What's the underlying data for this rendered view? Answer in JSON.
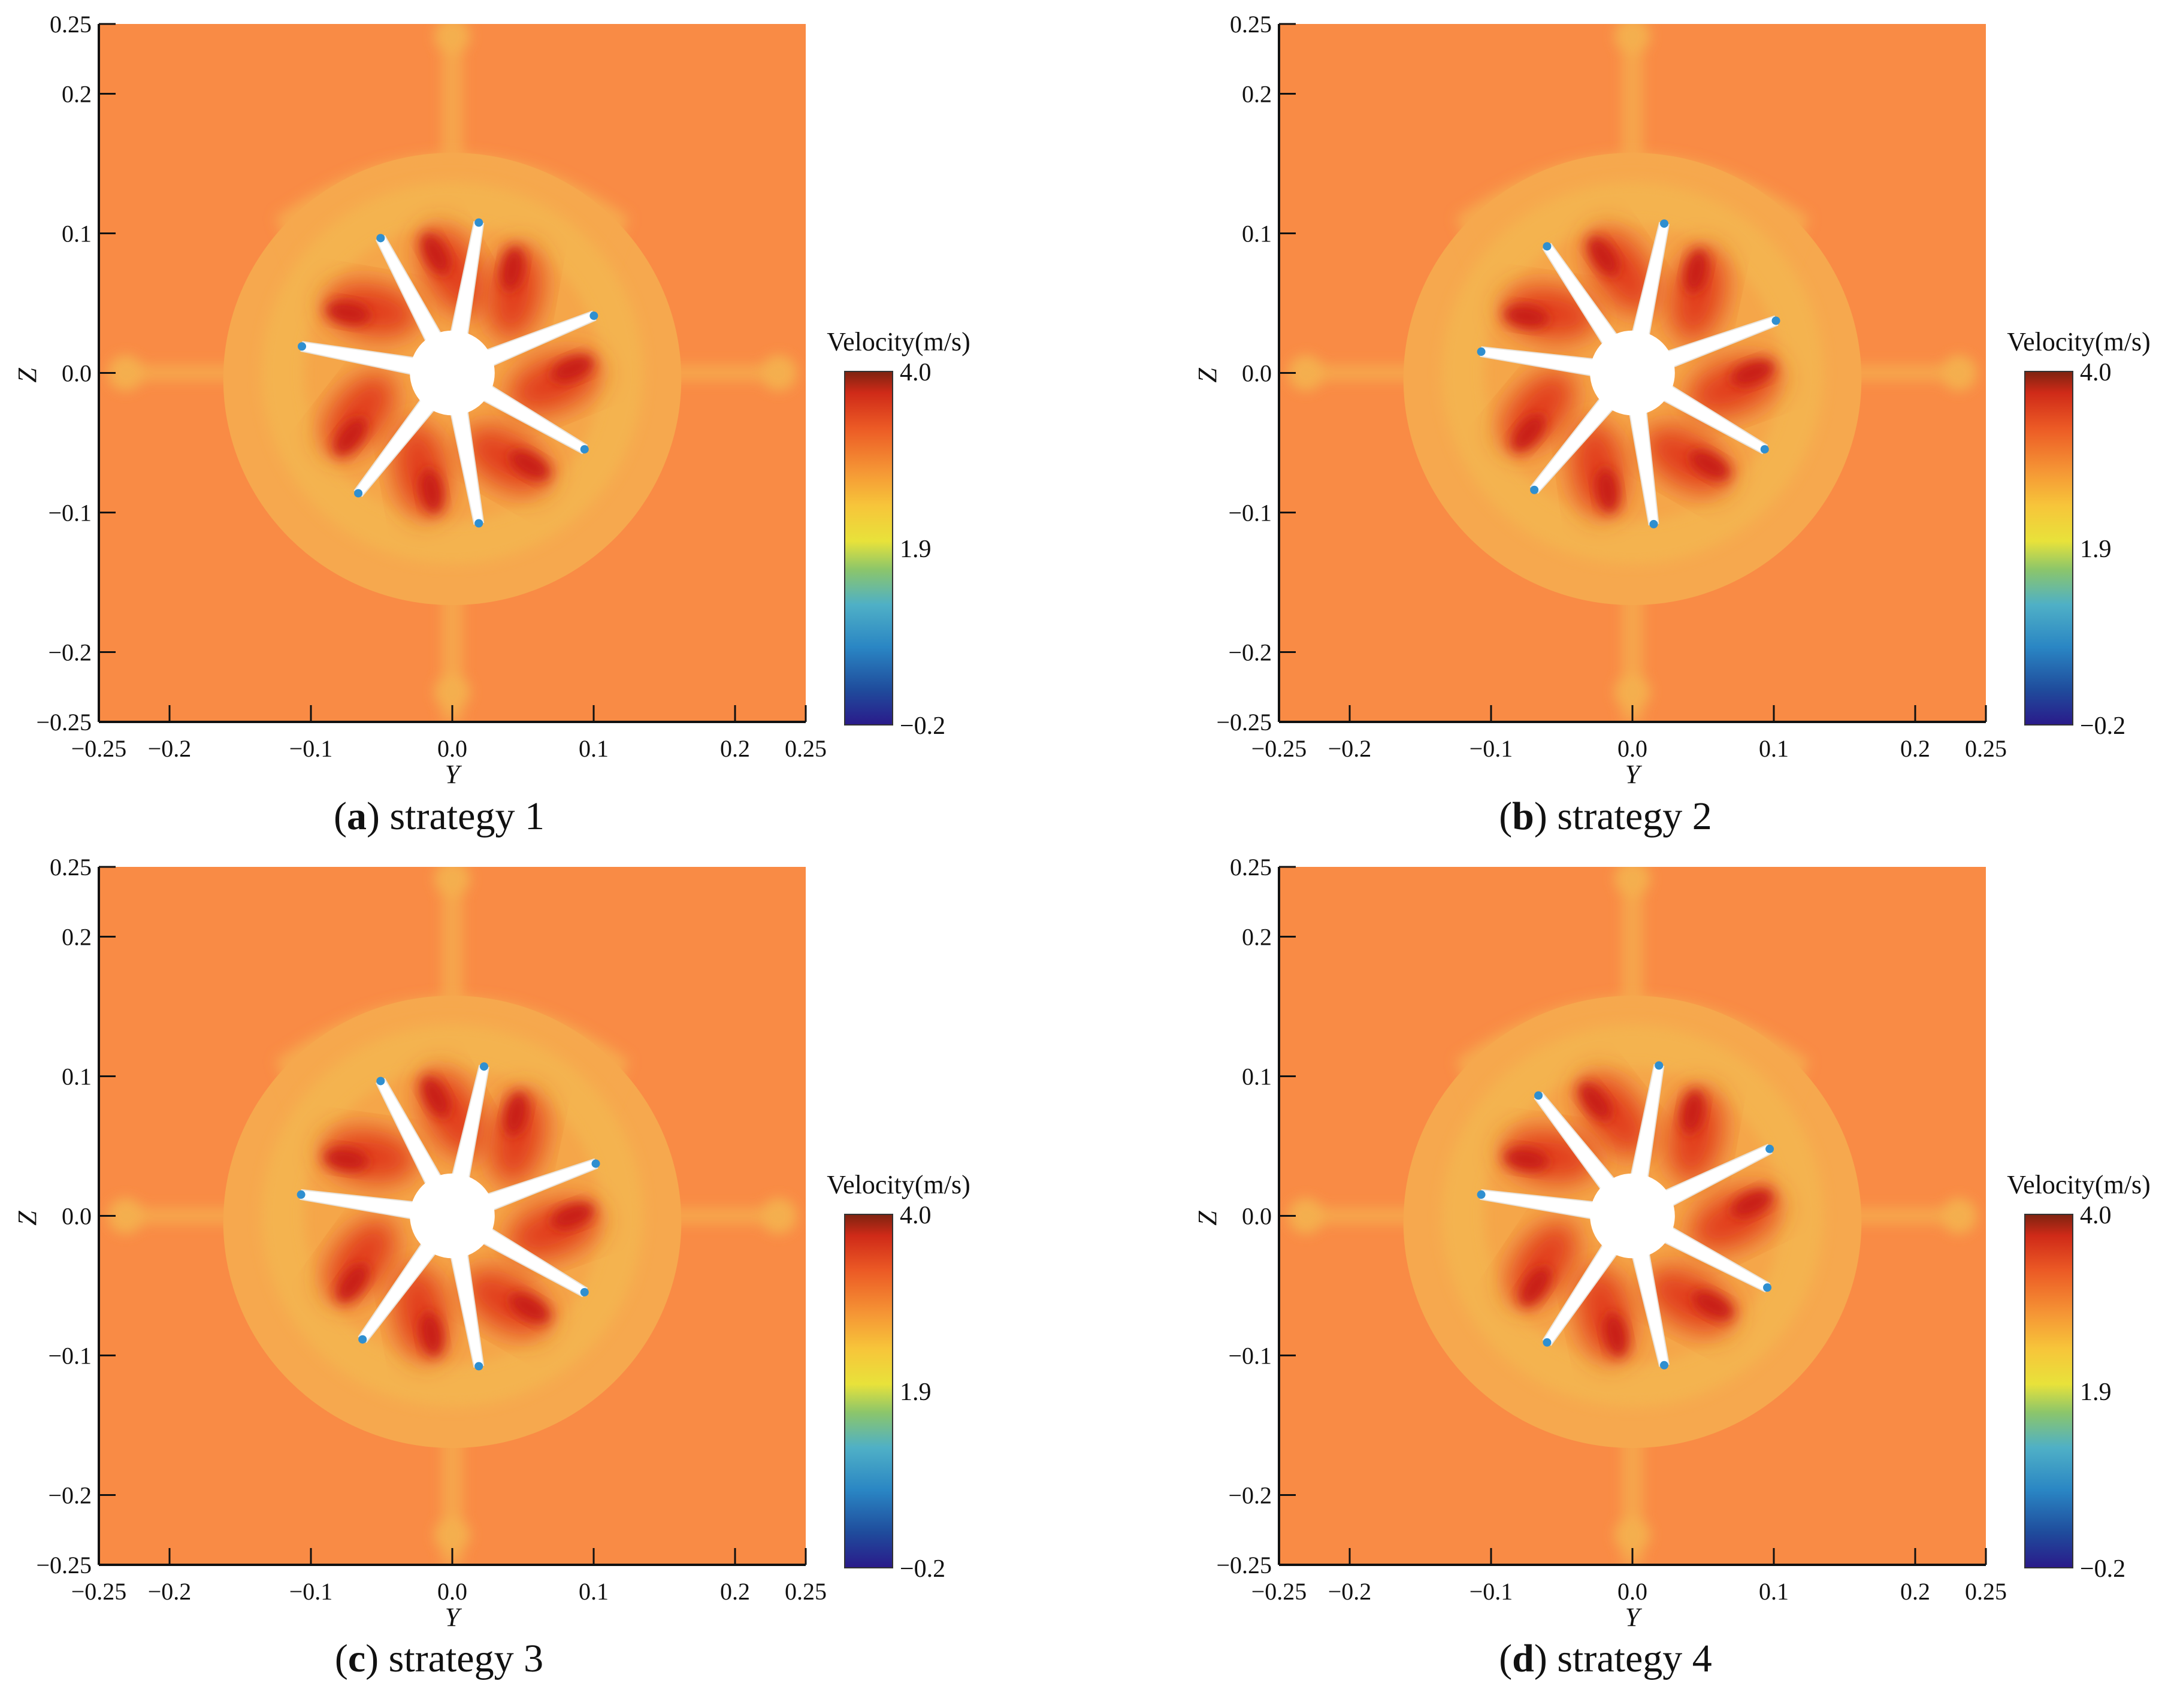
{
  "chart_data": [
    {
      "type": "heatmap",
      "caption_letter": "a",
      "caption_text": " strategy 1",
      "xlabel": "Y",
      "ylabel": "Z",
      "xlim": [
        -0.25,
        0.25
      ],
      "ylim": [
        -0.25,
        0.25
      ],
      "xticks": [
        {
          "value": -0.25,
          "label": "−0.25"
        },
        {
          "value": -0.2,
          "label": "−0.2"
        },
        {
          "value": -0.1,
          "label": "−0.1"
        },
        {
          "value": 0.0,
          "label": "0.0"
        },
        {
          "value": 0.1,
          "label": "0.1"
        },
        {
          "value": 0.2,
          "label": "0.2"
        },
        {
          "value": 0.25,
          "label": "0.25"
        }
      ],
      "yticks": [
        {
          "value": 0.25,
          "label": "0.25"
        },
        {
          "value": 0.2,
          "label": "0.2"
        },
        {
          "value": 0.1,
          "label": "0.1"
        },
        {
          "value": 0.0,
          "label": "0.0"
        },
        {
          "value": -0.1,
          "label": "−0.1"
        },
        {
          "value": -0.2,
          "label": "−0.2"
        },
        {
          "value": -0.25,
          "label": "−0.25"
        }
      ],
      "colorbar": {
        "title": "Velocity(m/s)",
        "min": -0.2,
        "max": 4.0,
        "ticks": [
          {
            "value": 4.0,
            "label": "4.0"
          },
          {
            "value": 1.9,
            "label": "1.9"
          },
          {
            "value": -0.2,
            "label": "−0.2"
          }
        ]
      },
      "blade_count": 7,
      "blade_tip_angles_deg": [
        118,
        80,
        22,
        -30,
        -80,
        -128,
        170
      ]
    },
    {
      "type": "heatmap",
      "caption_letter": "b",
      "caption_text": " strategy 2",
      "xlabel": "Y",
      "ylabel": "Z",
      "xlim": [
        -0.25,
        0.25
      ],
      "ylim": [
        -0.25,
        0.25
      ],
      "xticks": [
        {
          "value": -0.25,
          "label": "−0.25"
        },
        {
          "value": -0.2,
          "label": "−0.2"
        },
        {
          "value": -0.1,
          "label": "−0.1"
        },
        {
          "value": 0.0,
          "label": "0.0"
        },
        {
          "value": 0.1,
          "label": "0.1"
        },
        {
          "value": 0.2,
          "label": "0.2"
        },
        {
          "value": 0.25,
          "label": "0.25"
        }
      ],
      "yticks": [
        {
          "value": 0.25,
          "label": "0.25"
        },
        {
          "value": 0.2,
          "label": "0.2"
        },
        {
          "value": 0.1,
          "label": "0.1"
        },
        {
          "value": 0.0,
          "label": "0.0"
        },
        {
          "value": -0.1,
          "label": "−0.1"
        },
        {
          "value": -0.2,
          "label": "−0.2"
        },
        {
          "value": -0.25,
          "label": "−0.25"
        }
      ],
      "colorbar": {
        "title": "Velocity(m/s)",
        "min": -0.2,
        "max": 4.0,
        "ticks": [
          {
            "value": 4.0,
            "label": "4.0"
          },
          {
            "value": 1.9,
            "label": "1.9"
          },
          {
            "value": -0.2,
            "label": "−0.2"
          }
        ]
      },
      "blade_count": 7,
      "blade_tip_angles_deg": [
        124,
        78,
        20,
        -30,
        -82,
        -130,
        172
      ]
    },
    {
      "type": "heatmap",
      "caption_letter": "c",
      "caption_text": " strategy 3",
      "xlabel": "Y",
      "ylabel": "Z",
      "xlim": [
        -0.25,
        0.25
      ],
      "ylim": [
        -0.25,
        0.25
      ],
      "xticks": [
        {
          "value": -0.25,
          "label": "−0.25"
        },
        {
          "value": -0.2,
          "label": "−0.2"
        },
        {
          "value": -0.1,
          "label": "−0.1"
        },
        {
          "value": 0.0,
          "label": "0.0"
        },
        {
          "value": 0.1,
          "label": "0.1"
        },
        {
          "value": 0.2,
          "label": "0.2"
        },
        {
          "value": 0.25,
          "label": "0.25"
        }
      ],
      "yticks": [
        {
          "value": 0.25,
          "label": "0.25"
        },
        {
          "value": 0.2,
          "label": "0.2"
        },
        {
          "value": 0.1,
          "label": "0.1"
        },
        {
          "value": 0.0,
          "label": "0.0"
        },
        {
          "value": -0.1,
          "label": "−0.1"
        },
        {
          "value": -0.2,
          "label": "−0.2"
        },
        {
          "value": -0.25,
          "label": "−0.25"
        }
      ],
      "colorbar": {
        "title": "Velocity(m/s)",
        "min": -0.2,
        "max": 4.0,
        "ticks": [
          {
            "value": 4.0,
            "label": "4.0"
          },
          {
            "value": 1.9,
            "label": "1.9"
          },
          {
            "value": -0.2,
            "label": "−0.2"
          }
        ]
      },
      "blade_count": 7,
      "blade_tip_angles_deg": [
        118,
        78,
        20,
        -30,
        -80,
        -126,
        172
      ]
    },
    {
      "type": "heatmap",
      "caption_letter": "d",
      "caption_text": " strategy 4",
      "xlabel": "Y",
      "ylabel": "Z",
      "xlim": [
        -0.25,
        0.25
      ],
      "ylim": [
        -0.25,
        0.25
      ],
      "xticks": [
        {
          "value": -0.25,
          "label": "−0.25"
        },
        {
          "value": -0.2,
          "label": "−0.2"
        },
        {
          "value": -0.1,
          "label": "−0.1"
        },
        {
          "value": 0.0,
          "label": "0.0"
        },
        {
          "value": 0.1,
          "label": "0.1"
        },
        {
          "value": 0.2,
          "label": "0.2"
        },
        {
          "value": 0.25,
          "label": "0.25"
        }
      ],
      "yticks": [
        {
          "value": 0.25,
          "label": "0.25"
        },
        {
          "value": 0.2,
          "label": "0.2"
        },
        {
          "value": 0.1,
          "label": "0.1"
        },
        {
          "value": 0.0,
          "label": "0.0"
        },
        {
          "value": -0.1,
          "label": "−0.1"
        },
        {
          "value": -0.2,
          "label": "−0.2"
        },
        {
          "value": -0.25,
          "label": "−0.25"
        }
      ],
      "colorbar": {
        "title": "Velocity(m/s)",
        "min": -0.2,
        "max": 4.0,
        "ticks": [
          {
            "value": 4.0,
            "label": "4.0"
          },
          {
            "value": 1.9,
            "label": "1.9"
          },
          {
            "value": -0.2,
            "label": "−0.2"
          }
        ]
      },
      "blade_count": 7,
      "blade_tip_angles_deg": [
        128,
        80,
        26,
        -28,
        -78,
        -124,
        172
      ]
    }
  ],
  "colors": {
    "background_field": "#F98B45",
    "shroud_ring": "#F6A84E",
    "inner_disk": "#F4B350",
    "high_velocity": "#E2401E",
    "peak_velocity": "#C81E16",
    "blade": "#FFFFFF",
    "low_edge": "#2F8FD0",
    "colorbar_stops": [
      "#2A1A8A",
      "#1F4C9C",
      "#2A86C4",
      "#4FB0C6",
      "#8CC66A",
      "#E8E23A",
      "#F7C53A",
      "#F59535",
      "#EC5A25",
      "#CF2A18",
      "#7E2310"
    ]
  }
}
